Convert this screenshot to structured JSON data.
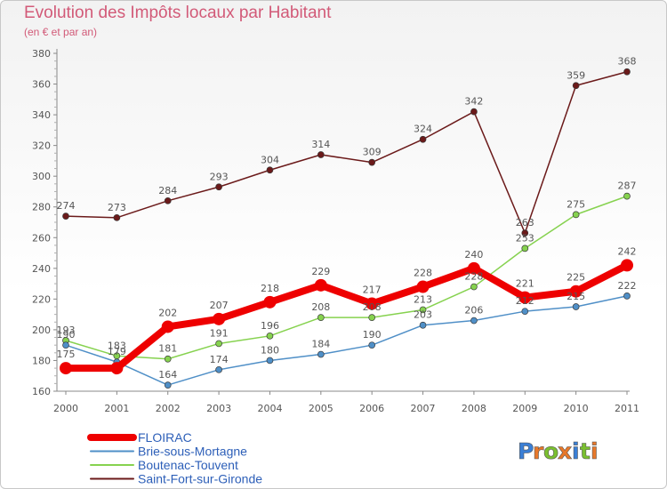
{
  "title": "Evolution des Impôts locaux par Habitant",
  "subtitle": "(en € et par an)",
  "logo": {
    "letters": [
      "P",
      "r",
      "o",
      "x",
      "i",
      "t",
      "i"
    ],
    "colors": [
      "#3a7fd6",
      "#e8782a",
      "#7abf30",
      "#e8782a",
      "#3a7fd6",
      "#7abf30",
      "#e8782a"
    ]
  },
  "chart_data": {
    "type": "line",
    "title": "Evolution des Impôts locaux par Habitant",
    "subtitle": "(en € et par an)",
    "xlabel": "",
    "ylabel": "",
    "categories": [
      "2000",
      "2001",
      "2002",
      "2003",
      "2004",
      "2005",
      "2006",
      "2007",
      "2008",
      "2009",
      "2010",
      "2011"
    ],
    "ylim": [
      160,
      380
    ],
    "yticks": [
      "160",
      "180",
      "200",
      "220",
      "240",
      "260",
      "280",
      "300",
      "320",
      "340",
      "360",
      "380"
    ],
    "grid": false,
    "legend_position": "bottom-left",
    "series": [
      {
        "name": "FLOIRAC",
        "color": "#ee0000",
        "values": [
          175,
          175,
          202,
          207,
          218,
          229,
          217,
          228,
          240,
          221,
          225,
          242
        ],
        "labels": [
          "175",
          "",
          "202",
          "207",
          "218",
          "229",
          "217",
          "228",
          "240",
          "221",
          "225",
          "242"
        ]
      },
      {
        "name": "Brie-sous-Mortagne",
        "color": "#4f8fc7",
        "values": [
          190,
          179,
          164,
          174,
          180,
          184,
          190,
          203,
          206,
          212,
          215,
          222
        ],
        "labels": [
          "190",
          "179",
          "164",
          "174",
          "180",
          "184",
          "190",
          "203",
          "206",
          "212",
          "215",
          "222"
        ]
      },
      {
        "name": "Boutenac-Touvent",
        "color": "#86d24f",
        "values": [
          193,
          183,
          181,
          191,
          196,
          208,
          208,
          213,
          228,
          253,
          275,
          287
        ],
        "labels": [
          "193",
          "183",
          "181",
          "191",
          "196",
          "208",
          "208",
          "213",
          "228",
          "253",
          "275",
          "287"
        ]
      },
      {
        "name": "Saint-Fort-sur-Gironde",
        "color": "#6b1a1a",
        "values": [
          274,
          273,
          284,
          293,
          304,
          314,
          309,
          324,
          342,
          263,
          359,
          368
        ],
        "labels": [
          "274",
          "273",
          "284",
          "293",
          "304",
          "314",
          "309",
          "324",
          "342",
          "263",
          "359",
          "368"
        ]
      }
    ]
  }
}
